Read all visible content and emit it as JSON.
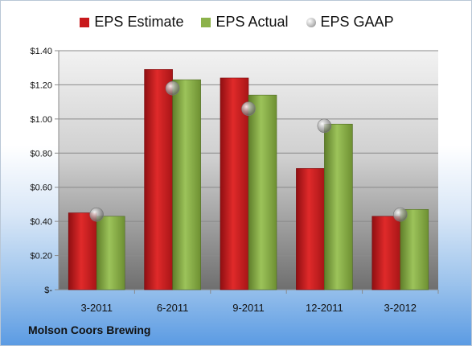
{
  "footer": {
    "company": "Molson Coors Brewing"
  },
  "colors": {
    "estimate": "#c8191c",
    "actual": "#8cb24a",
    "gaap": "#b8b8b8"
  },
  "chart_data": {
    "type": "bar",
    "title": "",
    "xlabel": "",
    "ylabel": "",
    "categories": [
      "3-2011",
      "6-2011",
      "9-2011",
      "12-2011",
      "3-2012"
    ],
    "series": [
      {
        "name": "EPS Estimate",
        "type": "bar",
        "values": [
          0.45,
          1.29,
          1.24,
          0.71,
          0.43
        ]
      },
      {
        "name": "EPS Actual",
        "type": "bar",
        "values": [
          0.43,
          1.23,
          1.14,
          0.97,
          0.47
        ]
      },
      {
        "name": "EPS GAAP",
        "type": "marker",
        "values": [
          0.44,
          1.18,
          1.06,
          0.96,
          0.44
        ]
      }
    ],
    "ylim": [
      0,
      1.4
    ],
    "yticks": [
      0,
      0.2,
      0.4,
      0.6,
      0.8,
      1.0,
      1.2,
      1.4
    ],
    "ytick_labels": [
      "$-",
      "$0.20",
      "$0.40",
      "$0.60",
      "$0.80",
      "$1.00",
      "$1.20",
      "$1.40"
    ],
    "grid": true,
    "legend_position": "top"
  }
}
